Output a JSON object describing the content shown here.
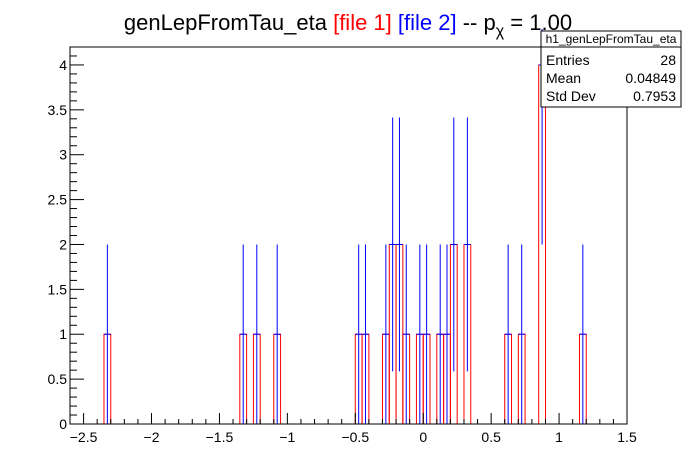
{
  "title": {
    "base": "genLepFromTau_eta",
    "file1": "[file 1]",
    "file2": "[file 2]",
    "sep": "--",
    "p": "p",
    "chi": "χ",
    "eq": "= 1.00"
  },
  "stats": {
    "name": "h1_genLepFromTau_eta",
    "rows": [
      {
        "label": "Entries",
        "value": "28"
      },
      {
        "label": "Mean",
        "value": "0.04849"
      },
      {
        "label": "Std Dev",
        "value": "0.7953"
      }
    ]
  },
  "colors": {
    "file1": "#ff0000",
    "file2": "#0000ff",
    "frame": "#000000"
  },
  "chart_data": {
    "type": "bar",
    "subtype": "histogram-overlay",
    "xlim": [
      -2.6,
      1.5
    ],
    "ylim": [
      0,
      4.2
    ],
    "bin_width": 0.05,
    "x_ticks": [
      -2.5,
      -2,
      -1.5,
      -1,
      -0.5,
      0,
      0.5,
      1,
      1.5
    ],
    "x_tick_labels": [
      "−2.5",
      "−2",
      "−1.5",
      "−1",
      "−0.5",
      "0",
      "0.5",
      "1",
      "1.5"
    ],
    "y_ticks": [
      0,
      0.5,
      1,
      1.5,
      2,
      2.5,
      3,
      3.5,
      4
    ],
    "y_tick_labels": [
      "0",
      "0.5",
      "1",
      "1.5",
      "2",
      "2.5",
      "3",
      "3.5",
      "4"
    ],
    "series": [
      {
        "name": "file 1",
        "color": "#ff0000",
        "bins": [
          {
            "x": -2.325,
            "y": 1
          },
          {
            "x": -1.325,
            "y": 1
          },
          {
            "x": -1.225,
            "y": 1
          },
          {
            "x": -1.075,
            "y": 1
          },
          {
            "x": -0.475,
            "y": 1
          },
          {
            "x": -0.425,
            "y": 1
          },
          {
            "x": -0.275,
            "y": 1
          },
          {
            "x": -0.225,
            "y": 2
          },
          {
            "x": -0.175,
            "y": 2
          },
          {
            "x": -0.125,
            "y": 1
          },
          {
            "x": -0.025,
            "y": 1
          },
          {
            "x": 0.025,
            "y": 1
          },
          {
            "x": 0.125,
            "y": 1
          },
          {
            "x": 0.175,
            "y": 1
          },
          {
            "x": 0.225,
            "y": 2
          },
          {
            "x": 0.325,
            "y": 2
          },
          {
            "x": 0.625,
            "y": 1
          },
          {
            "x": 0.725,
            "y": 1
          },
          {
            "x": 0.875,
            "y": 4
          },
          {
            "x": 1.175,
            "y": 1
          }
        ]
      },
      {
        "name": "file 2",
        "color": "#0000ff",
        "errors": [
          {
            "x": -2.325,
            "y": 1,
            "up": 1
          },
          {
            "x": -1.325,
            "y": 1,
            "up": 1
          },
          {
            "x": -1.225,
            "y": 1,
            "up": 1
          },
          {
            "x": -1.075,
            "y": 1,
            "up": 1
          },
          {
            "x": -0.475,
            "y": 1,
            "up": 1
          },
          {
            "x": -0.425,
            "y": 1,
            "up": 1
          },
          {
            "x": -0.275,
            "y": 1,
            "up": 1
          },
          {
            "x": -0.225,
            "y": 2,
            "up": 1.414
          },
          {
            "x": -0.175,
            "y": 2,
            "up": 1.414
          },
          {
            "x": -0.125,
            "y": 1,
            "up": 1
          },
          {
            "x": -0.025,
            "y": 1,
            "up": 1
          },
          {
            "x": 0.025,
            "y": 1,
            "up": 1
          },
          {
            "x": 0.125,
            "y": 1,
            "up": 1
          },
          {
            "x": 0.175,
            "y": 1,
            "up": 1
          },
          {
            "x": 0.225,
            "y": 2,
            "up": 1.414
          },
          {
            "x": 0.325,
            "y": 2,
            "up": 1.414
          },
          {
            "x": 0.625,
            "y": 1,
            "up": 1
          },
          {
            "x": 0.725,
            "y": 1,
            "up": 1
          },
          {
            "x": 0.875,
            "y": 4,
            "up": 2
          },
          {
            "x": 1.175,
            "y": 1,
            "up": 1
          }
        ]
      }
    ]
  }
}
